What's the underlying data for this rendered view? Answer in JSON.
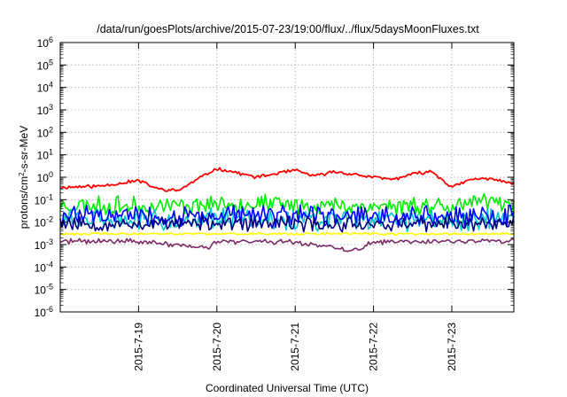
{
  "chart_data": {
    "type": "line",
    "title": "/data/run/goesPlots/archive/2015-07-23/19:00/flux/../flux/5daysMoonFluxes.txt",
    "xlabel": "Coordinated Universal Time (UTC)",
    "ylabel": {
      "base": "protons/cm",
      "sup": "2",
      "rest": "-s-sr-MeV"
    },
    "x_ticks": [
      "2015-7-19",
      "2015-7-20",
      "2015-7-21",
      "2015-7-22",
      "2015-7-23"
    ],
    "xlim": [
      "2015-07-18 00:00",
      "2015-07-23 19:00"
    ],
    "y_scale": "log",
    "ylim": [
      1e-06,
      1000000.0
    ],
    "y_ticks": [
      {
        "base": "10",
        "exp": "-6"
      },
      {
        "base": "10",
        "exp": "-5"
      },
      {
        "base": "10",
        "exp": "-4"
      },
      {
        "base": "10",
        "exp": "-3"
      },
      {
        "base": "10",
        "exp": "-2"
      },
      {
        "base": "10",
        "exp": "-1"
      },
      {
        "base": "10",
        "exp": "0"
      },
      {
        "base": "10",
        "exp": "1"
      },
      {
        "base": "10",
        "exp": "2"
      },
      {
        "base": "10",
        "exp": "3"
      },
      {
        "base": "10",
        "exp": "4"
      },
      {
        "base": "10",
        "exp": "5"
      },
      {
        "base": "10",
        "exp": "6"
      }
    ],
    "grid": true,
    "legend": "none",
    "series": [
      {
        "color": "#ff0000",
        "noise": 0.08,
        "seed": 11,
        "x": [
          "2015-07-18 00:00",
          "2015-07-18 12:00",
          "2015-07-19 00:00",
          "2015-07-19 06:00",
          "2015-07-19 12:00",
          "2015-07-19 18:00",
          "2015-07-20 00:00",
          "2015-07-20 06:00",
          "2015-07-20 12:00",
          "2015-07-21 00:00",
          "2015-07-21 06:00",
          "2015-07-21 12:00",
          "2015-07-22 00:00",
          "2015-07-22 06:00",
          "2015-07-22 12:00",
          "2015-07-22 18:00",
          "2015-07-23 00:00",
          "2015-07-23 06:00",
          "2015-07-23 12:00",
          "2015-07-23 19:00"
        ],
        "y": [
          0.35,
          0.4,
          0.7,
          0.3,
          0.25,
          0.8,
          2.5,
          1.6,
          1.0,
          2.0,
          1.1,
          1.8,
          1.0,
          0.8,
          1.4,
          1.8,
          0.35,
          0.8,
          0.9,
          0.5
        ]
      },
      {
        "color": "#00ee00",
        "noise": 0.45,
        "seed": 23,
        "x": [
          "2015-07-18 00:00",
          "2015-07-19 00:00",
          "2015-07-20 00:00",
          "2015-07-21 00:00",
          "2015-07-22 00:00",
          "2015-07-23 00:00",
          "2015-07-23 19:00"
        ],
        "y": [
          0.06,
          0.05,
          0.07,
          0.06,
          0.05,
          0.06,
          0.08
        ]
      },
      {
        "color": "#00c8c8",
        "noise": 0.5,
        "seed": 31,
        "x": [
          "2015-07-18 00:00",
          "2015-07-19 00:00",
          "2015-07-20 00:00",
          "2015-07-21 00:00",
          "2015-07-22 00:00",
          "2015-07-23 00:00",
          "2015-07-23 19:00"
        ],
        "y": [
          0.015,
          0.012,
          0.014,
          0.012,
          0.011,
          0.012,
          0.015
        ]
      },
      {
        "color": "#0000ff",
        "noise": 0.5,
        "seed": 47,
        "x": [
          "2015-07-18 00:00",
          "2015-07-19 00:00",
          "2015-07-20 00:00",
          "2015-07-21 00:00",
          "2015-07-22 00:00",
          "2015-07-23 00:00",
          "2015-07-23 19:00"
        ],
        "y": [
          0.02,
          0.018,
          0.02,
          0.018,
          0.017,
          0.018,
          0.02
        ]
      },
      {
        "color": "#000080",
        "noise": 0.35,
        "seed": 53,
        "x": [
          "2015-07-18 00:00",
          "2015-07-19 00:00",
          "2015-07-20 00:00",
          "2015-07-21 00:00",
          "2015-07-22 00:00",
          "2015-07-23 00:00",
          "2015-07-23 19:00"
        ],
        "y": [
          0.009,
          0.008,
          0.009,
          0.008,
          0.008,
          0.008,
          0.009
        ]
      },
      {
        "color": "#ffff00",
        "noise": 0.06,
        "seed": 61,
        "x": [
          "2015-07-18 00:00",
          "2015-07-19 00:00",
          "2015-07-20 00:00",
          "2015-07-21 00:00",
          "2015-07-22 00:00",
          "2015-07-23 00:00",
          "2015-07-23 19:00"
        ],
        "y": [
          0.003,
          0.003,
          0.003,
          0.003,
          0.003,
          0.003,
          0.003
        ]
      },
      {
        "color": "#7b2a66",
        "noise": 0.12,
        "seed": 71,
        "x": [
          "2015-07-18 00:00",
          "2015-07-19 00:00",
          "2015-07-19 22:00",
          "2015-07-20 00:00",
          "2015-07-21 00:00",
          "2015-07-21 18:00",
          "2015-07-22 00:00",
          "2015-07-23 00:00",
          "2015-07-23 19:00"
        ],
        "y": [
          0.0014,
          0.0014,
          0.0007,
          0.0014,
          0.0013,
          0.0005,
          0.0013,
          0.0014,
          0.0014
        ]
      }
    ]
  }
}
